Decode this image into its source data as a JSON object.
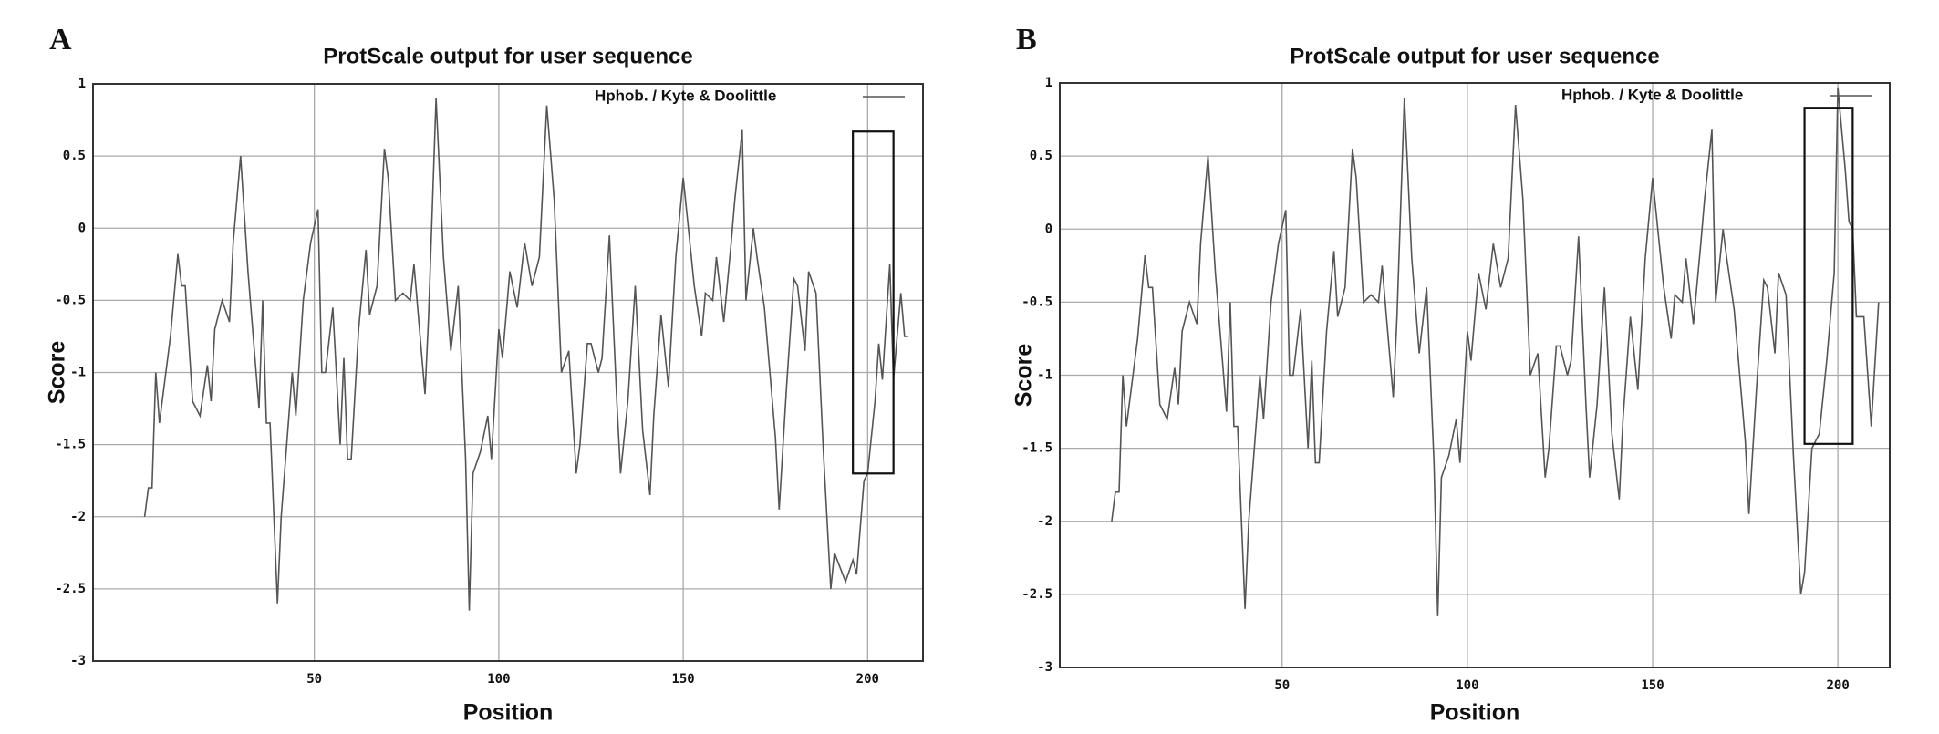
{
  "chart_data": [
    {
      "type": "line",
      "panel_label": "A",
      "title": "ProtScale output for user sequence",
      "x_label": "Position",
      "y_label": "Score",
      "xlim": [
        -10,
        215
      ],
      "ylim": [
        -3,
        1
      ],
      "xticks": [
        50,
        100,
        150,
        200
      ],
      "yticks": [
        1,
        0.5,
        0,
        -0.5,
        -1,
        -1.5,
        -2,
        -2.5,
        -3
      ],
      "grid": true,
      "highlight": {
        "x": [
          196,
          207
        ],
        "y": [
          -1.7,
          0.67
        ]
      },
      "series": [
        {
          "name": "Hphob.  /  Kyte & Doolittle",
          "color": "#555555",
          "x": [
            4,
            5,
            6,
            7,
            8,
            11,
            13,
            14,
            15,
            17,
            19,
            21,
            22,
            23,
            25,
            27,
            28,
            30,
            32,
            35,
            36,
            37,
            38,
            40,
            41,
            44,
            45,
            47,
            49,
            51,
            52,
            53,
            55,
            57,
            58,
            59,
            60,
            62,
            64,
            65,
            67,
            69,
            70,
            72,
            74,
            76,
            77,
            80,
            81,
            83,
            85,
            87,
            89,
            91,
            92,
            93,
            95,
            97,
            98,
            100,
            101,
            103,
            105,
            107,
            109,
            111,
            113,
            115,
            117,
            119,
            121,
            122,
            124,
            125,
            127,
            128,
            130,
            132,
            133,
            135,
            137,
            139,
            141,
            142,
            144,
            146,
            148,
            150,
            152,
            153,
            155,
            156,
            158,
            159,
            161,
            163,
            164,
            166,
            167,
            169,
            170,
            172,
            175,
            176,
            178,
            180,
            181,
            183,
            184,
            186,
            188,
            190,
            191,
            194,
            196,
            197,
            199,
            200,
            202,
            203,
            204,
            206,
            207,
            209,
            210,
            211
          ],
          "values": [
            -2.0,
            -1.8,
            -1.8,
            -1.0,
            -1.35,
            -0.75,
            -0.18,
            -0.4,
            -0.4,
            -1.2,
            -1.3,
            -0.95,
            -1.2,
            -0.7,
            -0.5,
            -0.65,
            -0.1,
            0.5,
            -0.3,
            -1.25,
            -0.5,
            -1.35,
            -1.35,
            -2.6,
            -2.0,
            -1.0,
            -1.3,
            -0.5,
            -0.1,
            0.13,
            -1.0,
            -1.0,
            -0.55,
            -1.5,
            -0.9,
            -1.6,
            -1.6,
            -0.7,
            -0.15,
            -0.6,
            -0.4,
            0.55,
            0.35,
            -0.5,
            -0.45,
            -0.5,
            -0.25,
            -1.15,
            -0.6,
            0.9,
            -0.2,
            -0.85,
            -0.4,
            -1.6,
            -2.65,
            -1.7,
            -1.55,
            -1.3,
            -1.6,
            -0.7,
            -0.9,
            -0.3,
            -0.55,
            -0.1,
            -0.4,
            -0.2,
            0.85,
            0.2,
            -1.0,
            -0.85,
            -1.7,
            -1.5,
            -0.8,
            -0.8,
            -1.0,
            -0.9,
            -0.05,
            -1.2,
            -1.7,
            -1.2,
            -0.4,
            -1.4,
            -1.85,
            -1.3,
            -0.6,
            -1.1,
            -0.2,
            0.35,
            -0.15,
            -0.4,
            -0.75,
            -0.45,
            -0.5,
            -0.2,
            -0.65,
            -0.1,
            0.2,
            0.68,
            -0.5,
            0.0,
            -0.2,
            -0.55,
            -1.45,
            -1.95,
            -1.1,
            -0.35,
            -0.4,
            -0.85,
            -0.3,
            -0.45,
            -1.55,
            -2.5,
            -2.25,
            -2.45,
            -2.3,
            -2.4,
            -1.75,
            -1.7,
            -1.2,
            -0.8,
            -1.05,
            -0.25,
            -1.05,
            -0.45,
            -0.75,
            -0.75
          ]
        }
      ]
    },
    {
      "type": "line",
      "panel_label": "B",
      "title": "ProtScale output for user sequence",
      "x_label": "Position",
      "y_label": "Score",
      "xlim": [
        -10,
        214
      ],
      "ylim": [
        -3,
        1
      ],
      "xticks": [
        50,
        100,
        150,
        200
      ],
      "yticks": [
        1,
        0.5,
        0,
        -0.5,
        -1,
        -1.5,
        -2,
        -2.5,
        -3
      ],
      "grid": true,
      "highlight": {
        "x": [
          191,
          204
        ],
        "y": [
          -1.47,
          0.83
        ]
      },
      "series": [
        {
          "name": "Hphob.  /  Kyte & Doolittle",
          "color": "#555555",
          "x": [
            4,
            5,
            6,
            7,
            8,
            11,
            13,
            14,
            15,
            17,
            19,
            21,
            22,
            23,
            25,
            27,
            28,
            30,
            32,
            35,
            36,
            37,
            38,
            40,
            41,
            44,
            45,
            47,
            49,
            51,
            52,
            53,
            55,
            57,
            58,
            59,
            60,
            62,
            64,
            65,
            67,
            69,
            70,
            72,
            74,
            76,
            77,
            80,
            81,
            83,
            85,
            87,
            89,
            91,
            92,
            93,
            95,
            97,
            98,
            100,
            101,
            103,
            105,
            107,
            109,
            111,
            113,
            115,
            117,
            119,
            121,
            122,
            124,
            125,
            127,
            128,
            130,
            132,
            133,
            135,
            137,
            139,
            141,
            142,
            144,
            146,
            148,
            150,
            152,
            153,
            155,
            156,
            158,
            159,
            161,
            163,
            164,
            166,
            167,
            169,
            170,
            172,
            175,
            176,
            178,
            180,
            181,
            183,
            184,
            186,
            188,
            190,
            191,
            193,
            195,
            197,
            199,
            200,
            202,
            203,
            204,
            205,
            207,
            209,
            211
          ],
          "values": [
            -2.0,
            -1.8,
            -1.8,
            -1.0,
            -1.35,
            -0.75,
            -0.18,
            -0.4,
            -0.4,
            -1.2,
            -1.3,
            -0.95,
            -1.2,
            -0.7,
            -0.5,
            -0.65,
            -0.1,
            0.5,
            -0.3,
            -1.25,
            -0.5,
            -1.35,
            -1.35,
            -2.6,
            -2.0,
            -1.0,
            -1.3,
            -0.5,
            -0.1,
            0.13,
            -1.0,
            -1.0,
            -0.55,
            -1.5,
            -0.9,
            -1.6,
            -1.6,
            -0.7,
            -0.15,
            -0.6,
            -0.4,
            0.55,
            0.35,
            -0.5,
            -0.45,
            -0.5,
            -0.25,
            -1.15,
            -0.6,
            0.9,
            -0.2,
            -0.85,
            -0.4,
            -1.6,
            -2.65,
            -1.7,
            -1.55,
            -1.3,
            -1.6,
            -0.7,
            -0.9,
            -0.3,
            -0.55,
            -0.1,
            -0.4,
            -0.2,
            0.85,
            0.2,
            -1.0,
            -0.85,
            -1.7,
            -1.5,
            -0.8,
            -0.8,
            -1.0,
            -0.9,
            -0.05,
            -1.2,
            -1.7,
            -1.2,
            -0.4,
            -1.4,
            -1.85,
            -1.3,
            -0.6,
            -1.1,
            -0.2,
            0.35,
            -0.15,
            -0.4,
            -0.75,
            -0.45,
            -0.5,
            -0.2,
            -0.65,
            -0.1,
            0.2,
            0.68,
            -0.5,
            0.0,
            -0.2,
            -0.55,
            -1.45,
            -1.95,
            -1.1,
            -0.35,
            -0.4,
            -0.85,
            -0.3,
            -0.45,
            -1.55,
            -2.5,
            -2.35,
            -1.5,
            -1.4,
            -0.9,
            -0.3,
            0.97,
            0.4,
            0.05,
            0.0,
            -0.6,
            -0.6,
            -1.35,
            -0.5
          ]
        }
      ]
    }
  ]
}
